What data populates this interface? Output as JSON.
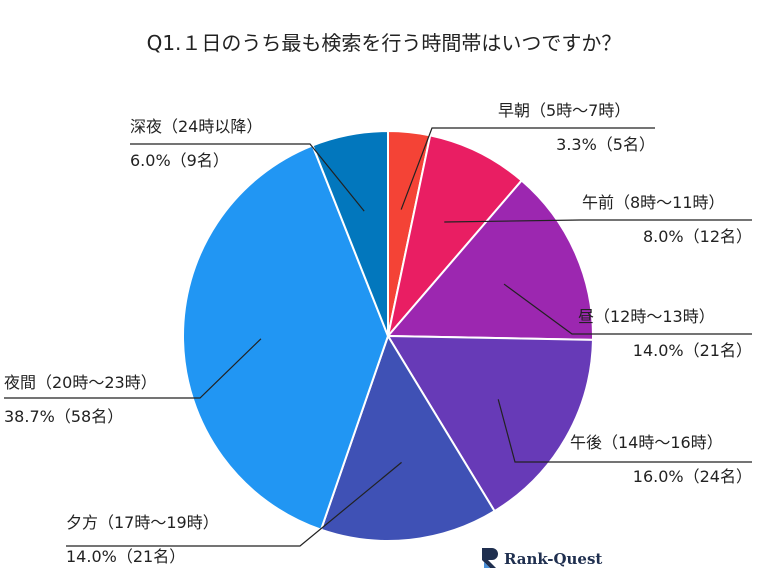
{
  "chart_data": {
    "type": "pie",
    "title": "Q1.１日のうち最も検索を行う時間帯はいつですか？",
    "categories": [
      "早朝（5時～7時）",
      "午前（8時～11時）",
      "昼（12時～13時）",
      "午後（14時～16時）",
      "夕方（17時～19時）",
      "夜間（20時～23時）",
      "深夜（24時以降）"
    ],
    "series": [
      {
        "values": [
          3.3,
          8.0,
          14.0,
          16.0,
          14.0,
          38.7,
          6.0
        ],
        "value_labels": [
          "3.3%（5名）",
          "8.0%（12名）",
          "14.0%（21名）",
          "16.0%（24名）",
          "14.0%（21名）",
          "38.7%（58名）",
          "6.0%（9名）"
        ]
      }
    ],
    "colors": [
      "#f44336",
      "#e91e63",
      "#9c27b0",
      "#673ab7",
      "#3f51b5",
      "#2196f3",
      "#0277bd"
    ],
    "slice_border": "#ffffff",
    "leader_line_color": "#222222",
    "legend": "none",
    "start": "12 o'clock, clockwise"
  },
  "brand": {
    "logo_text": "Rank-Quest",
    "logo_color": "#1f2f4f"
  }
}
